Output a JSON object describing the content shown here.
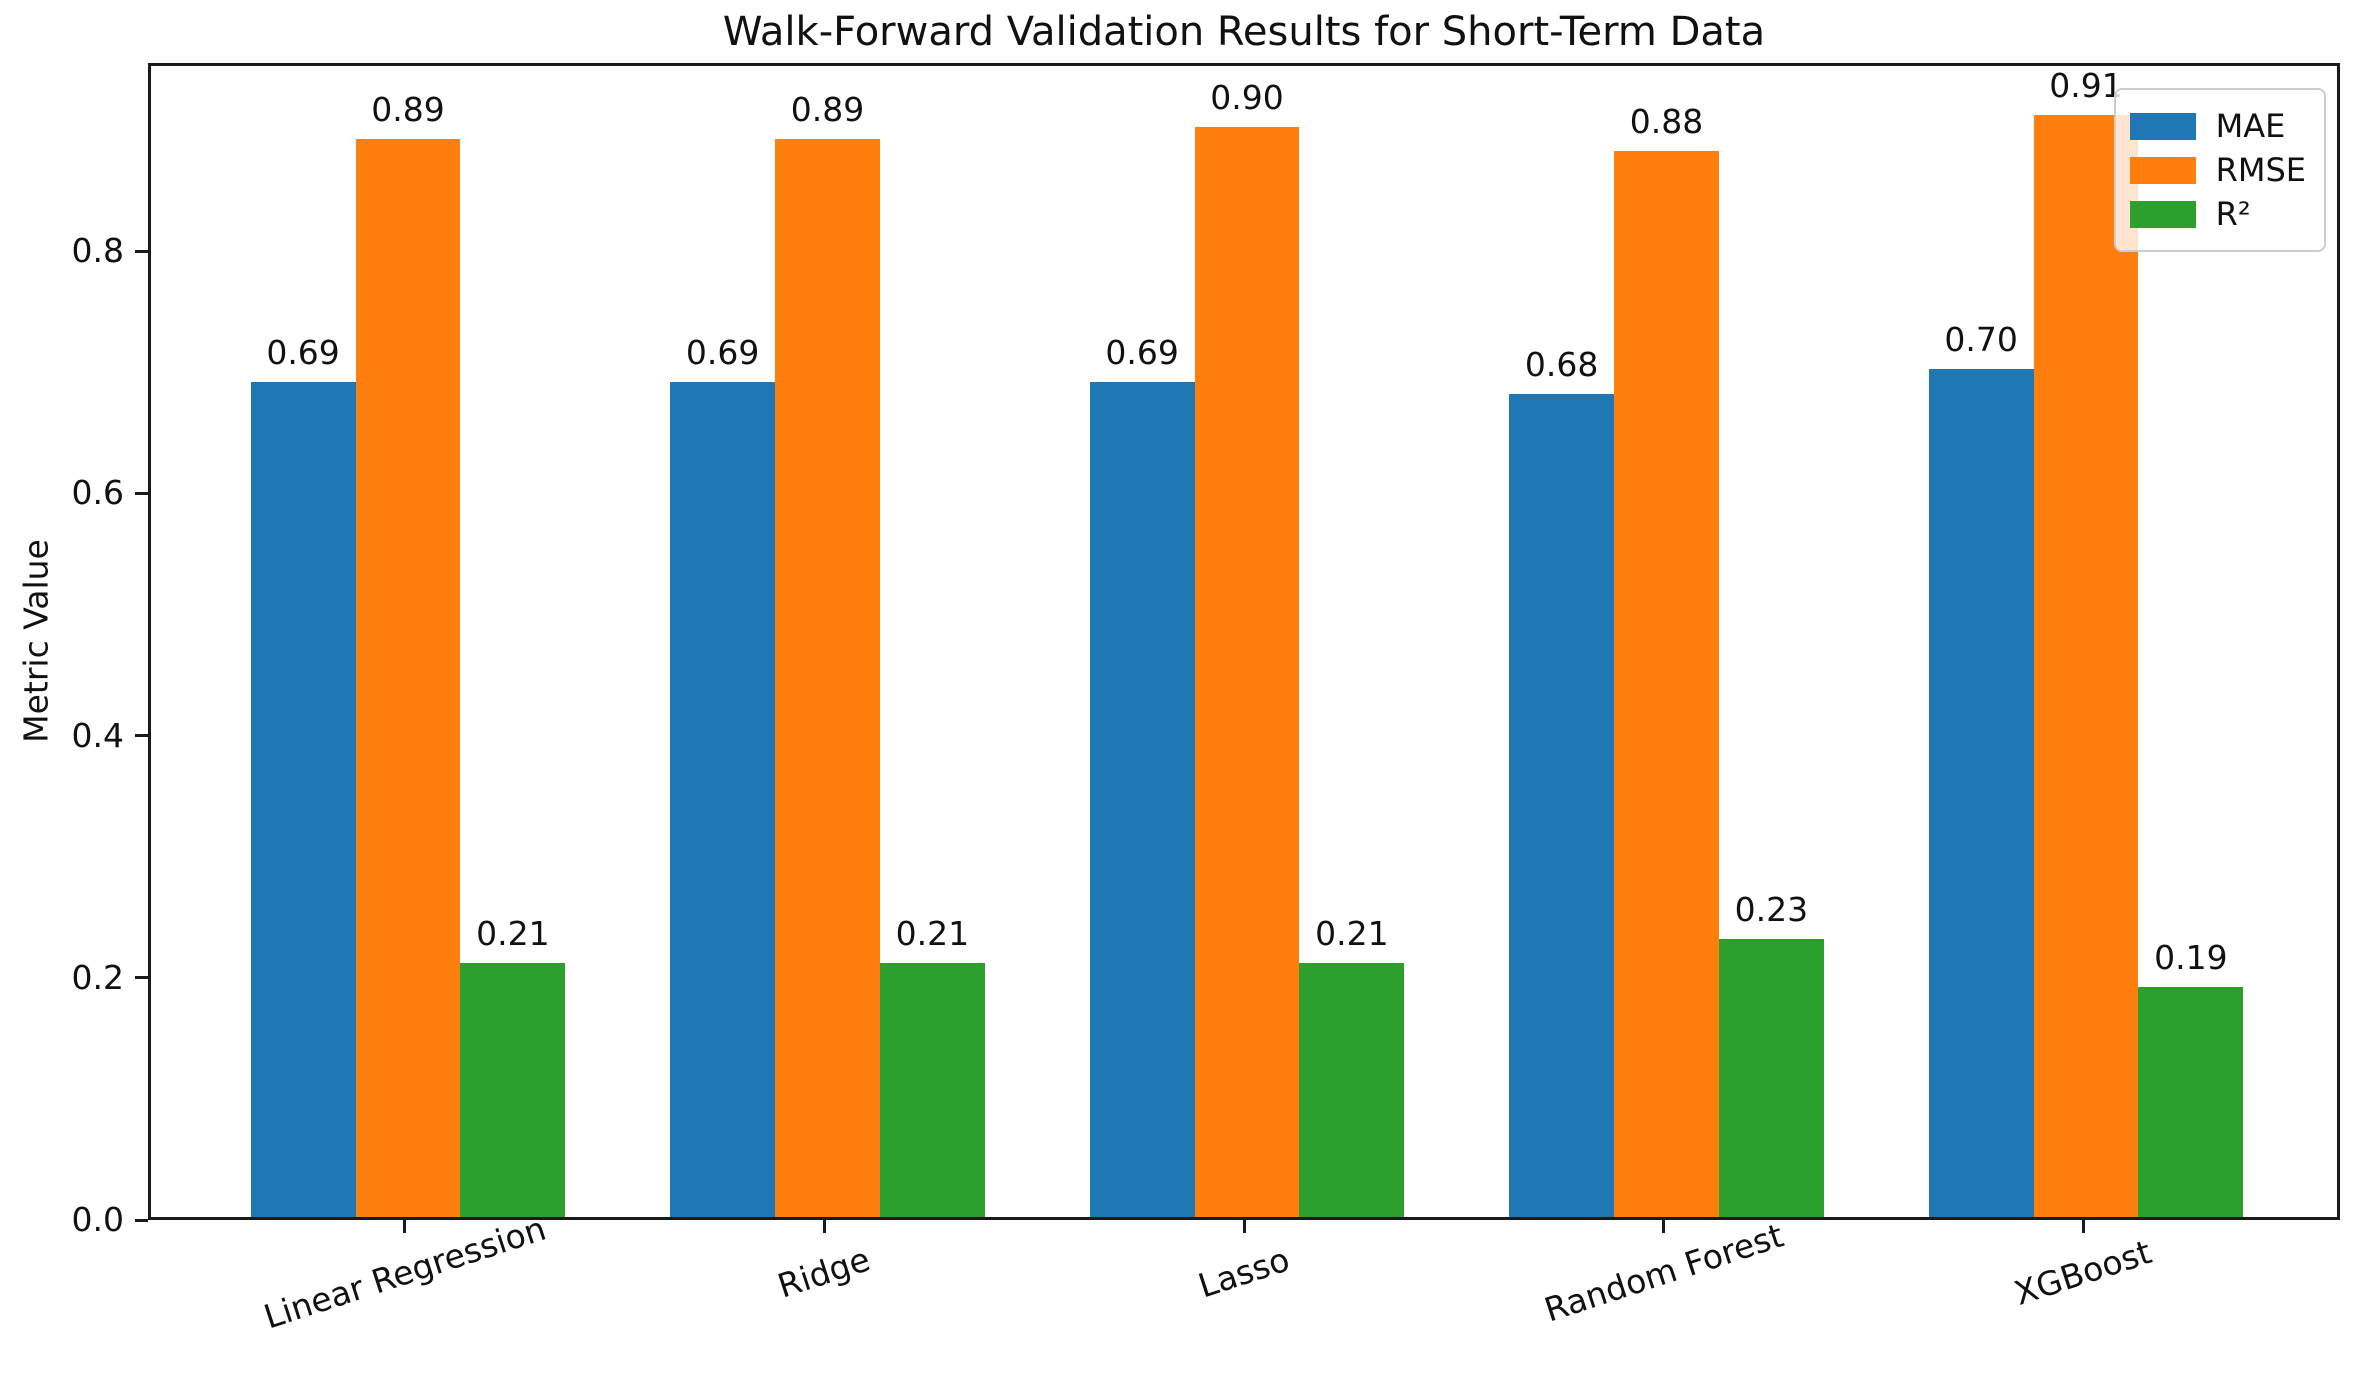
{
  "chart_data": {
    "type": "bar",
    "title": "Walk-Forward Validation Results for Short-Term Data",
    "xlabel": "",
    "ylabel": "Metric Value",
    "categories": [
      "Linear Regression",
      "Ridge",
      "Lasso",
      "Random Forest",
      "XGBoost"
    ],
    "series": [
      {
        "name": "MAE",
        "color": "#1f77b4",
        "values": [
          0.69,
          0.69,
          0.69,
          0.68,
          0.7
        ]
      },
      {
        "name": "RMSE",
        "color": "#ff7f0e",
        "values": [
          0.89,
          0.89,
          0.9,
          0.88,
          0.91
        ]
      },
      {
        "name": "R²",
        "color": "#2ca02c",
        "values": [
          0.21,
          0.21,
          0.21,
          0.23,
          0.19
        ]
      }
    ],
    "bar_value_label_format": "2-decimals",
    "yticks": [
      0.0,
      0.2,
      0.4,
      0.6,
      0.8
    ],
    "ytick_labels": [
      "0.0",
      "0.2",
      "0.4",
      "0.6",
      "0.8"
    ],
    "ylim": [
      0,
      0.9555
    ],
    "bar_width": 0.25,
    "group_spacing": 1.0,
    "grid": false,
    "legend": {
      "position": "upper right",
      "labels": [
        "MAE",
        "RMSE",
        "R²"
      ]
    },
    "background_color": "#ffffff",
    "spine_color": "#1a1a1a"
  }
}
